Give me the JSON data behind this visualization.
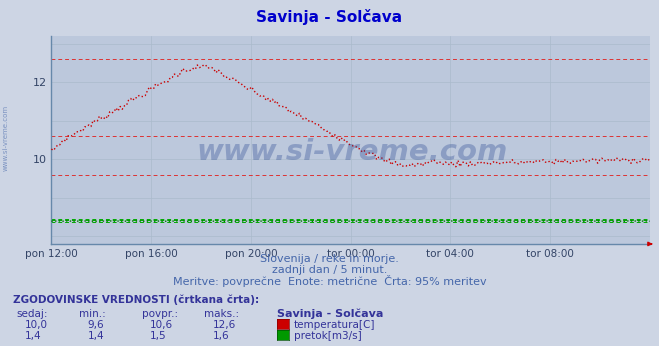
{
  "title": "Savinja - Solčava",
  "title_color": "#0000cc",
  "bg_color": "#cdd5e4",
  "plot_bg_color": "#bcc8dc",
  "grid_color": "#aabbcc",
  "xlabel_ticks": [
    "pon 12:00",
    "pon 16:00",
    "pon 20:00",
    "tor 00:00",
    "tor 04:00",
    "tor 08:00"
  ],
  "ylabel_temp": [
    10,
    12
  ],
  "ylim_temp": [
    7.8,
    13.2
  ],
  "temp_color": "#cc0000",
  "flow_color": "#007700",
  "hist_color": "#dd3333",
  "hist_flow_color": "#00aa00",
  "watermark_text": "www.si-vreme.com",
  "watermark_color": "#1a3a8a",
  "watermark_alpha": 0.3,
  "subtitle1": "Slovenija / reke in morje.",
  "subtitle2": "zadnji dan / 5 minut.",
  "subtitle3": "Meritve: povprečne  Enote: metrične  Črta: 95% meritev",
  "subtitle_color": "#4466aa",
  "legend_title": "ZGODOVINSKE VREDNOSTI (črtkana črta):",
  "legend_headers": [
    "sedaj:",
    "min.:",
    "povpr.:",
    "maks.:",
    "Savinja - Solčava"
  ],
  "legend_row1": [
    "10,0",
    "9,6",
    "10,6",
    "12,6"
  ],
  "legend_row2": [
    "1,4",
    "1,4",
    "1,5",
    "1,6"
  ],
  "legend_row1_label": "temperatura[C]",
  "legend_row2_label": "pretok[m3/s]",
  "legend_color": "#333399",
  "n_points": 288,
  "temp_hist_max": 12.6,
  "temp_hist_min": 9.6,
  "temp_hist_avg": 10.6,
  "flow_value": 1.45,
  "flow_hist_max": 1.6,
  "flow_hist_min": 1.4,
  "flow_hist_avg": 1.5,
  "flow_scale_max": 13.2
}
